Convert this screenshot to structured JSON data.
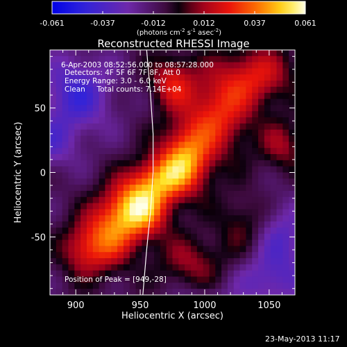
{
  "chart_data": {
    "type": "heatmap",
    "title": "Reconstructed RHESSI Image",
    "xlabel": "Heliocentric X (arcsec)",
    "ylabel": "Heliocentric Y (arcsec)",
    "xlim": [
      880,
      1070
    ],
    "ylim": [
      -95,
      95
    ],
    "xticks": [
      900,
      950,
      1000,
      1050
    ],
    "yticks": [
      50,
      0,
      -50
    ],
    "colorbar": {
      "range": [
        -0.061,
        0.061
      ],
      "ticks": [
        "-0.061",
        "-0.037",
        "-0.012",
        "0.012",
        "0.037",
        "0.061"
      ],
      "unit_main": "(photons cm",
      "unit_sup1": "-2",
      "unit_mid": " s",
      "unit_sup2": "-1",
      "unit_end": " asec",
      "unit_sup3": "-2",
      "unit_close": ")"
    },
    "annotations": {
      "time_range": "6-Apr-2003 08:52:56.000 to 08:57:28.000",
      "detectors": "Detectors: 4F 5F 6F 7F 8F, Att 0",
      "energy": "Energy Range: 3.0 - 6.0 keV",
      "clean": "Clean     Total counts: 7.14E+04",
      "peak": "Position of Peak = [949,-28]"
    },
    "peak_position": [
      949,
      -28
    ],
    "total_counts": 71400,
    "blobs": [
      {
        "x": 948,
        "y": -28,
        "sx": 16,
        "sy": 16,
        "v": 0.062
      },
      {
        "x": 985,
        "y": 10,
        "sx": 14,
        "sy": 18,
        "v": 0.05
      },
      {
        "x": 965,
        "y": -5,
        "sx": 14,
        "sy": 12,
        "v": 0.035
      },
      {
        "x": 925,
        "y": -50,
        "sx": 14,
        "sy": 18,
        "v": 0.035
      },
      {
        "x": 905,
        "y": -60,
        "sx": 12,
        "sy": 14,
        "v": 0.025
      },
      {
        "x": 1010,
        "y": 45,
        "sx": 18,
        "sy": 22,
        "v": 0.035
      },
      {
        "x": 1040,
        "y": 75,
        "sx": 20,
        "sy": 16,
        "v": 0.03
      },
      {
        "x": 975,
        "y": 70,
        "sx": 12,
        "sy": 14,
        "v": 0.03
      },
      {
        "x": 1060,
        "y": 20,
        "sx": 12,
        "sy": 14,
        "v": 0.02
      },
      {
        "x": 990,
        "y": -70,
        "sx": 18,
        "sy": 14,
        "v": 0.02
      },
      {
        "x": 1030,
        "y": -40,
        "sx": 14,
        "sy": 16,
        "v": 0.016
      },
      {
        "x": 900,
        "y": 60,
        "sx": 20,
        "sy": 22,
        "v": -0.03
      },
      {
        "x": 880,
        "y": 20,
        "sx": 14,
        "sy": 14,
        "v": -0.018
      },
      {
        "x": 1060,
        "y": -50,
        "sx": 16,
        "sy": 20,
        "v": -0.022
      },
      {
        "x": 1050,
        "y": -85,
        "sx": 20,
        "sy": 14,
        "v": -0.02
      },
      {
        "x": 1000,
        "y": -100,
        "sx": 16,
        "sy": 8,
        "v": -0.012
      }
    ],
    "background_level": -0.01,
    "limb_x": [
      955,
      958,
      960,
      960,
      958,
      955,
      952
    ],
    "limb_y": [
      95,
      60,
      30,
      0,
      -30,
      -60,
      -95
    ]
  },
  "footer": {
    "timestamp": "23-May-2013 11:17"
  }
}
